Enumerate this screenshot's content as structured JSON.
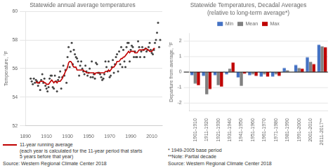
{
  "chart_data": [
    {
      "type": "scatter",
      "title": "Statewide annual average temperatures",
      "ylabel": "Temperature, °F",
      "xlim": [
        1890,
        2020
      ],
      "xticks": [
        1890,
        1910,
        1930,
        1950,
        1970,
        1990,
        2010
      ],
      "ylim": [
        52,
        60
      ],
      "yticks": [
        52,
        54,
        56,
        58,
        60
      ],
      "grid": "y",
      "legend": "bottom",
      "annotations": [
        "Source: Western Regional Climate Center 2018"
      ],
      "series": [
        {
          "type": "scatter",
          "color": "#444444",
          "x": [
            1895,
            1896,
            1897,
            1898,
            1899,
            1900,
            1901,
            1902,
            1903,
            1904,
            1905,
            1906,
            1907,
            1908,
            1909,
            1910,
            1911,
            1912,
            1913,
            1914,
            1915,
            1916,
            1917,
            1918,
            1919,
            1920,
            1921,
            1922,
            1923,
            1924,
            1925,
            1926,
            1927,
            1928,
            1929,
            1930,
            1931,
            1932,
            1933,
            1934,
            1935,
            1936,
            1937,
            1938,
            1939,
            1940,
            1941,
            1942,
            1943,
            1944,
            1945,
            1946,
            1947,
            1948,
            1949,
            1950,
            1951,
            1952,
            1953,
            1954,
            1955,
            1956,
            1957,
            1958,
            1959,
            1960,
            1961,
            1962,
            1963,
            1964,
            1965,
            1966,
            1967,
            1968,
            1969,
            1970,
            1971,
            1972,
            1973,
            1974,
            1975,
            1976,
            1977,
            1978,
            1979,
            1980,
            1981,
            1982,
            1983,
            1984,
            1985,
            1986,
            1987,
            1988,
            1989,
            1990,
            1991,
            1992,
            1993,
            1994,
            1995,
            1996,
            1997,
            1998,
            1999,
            2000,
            2001,
            2002,
            2003,
            2004,
            2005,
            2006,
            2007,
            2008,
            2009,
            2010,
            2011,
            2012,
            2013,
            2014,
            2015,
            2016,
            2017,
            2018
          ],
          "values": [
            55.3,
            55.1,
            54.9,
            55.3,
            55.0,
            55.2,
            55.1,
            54.8,
            55.0,
            54.5,
            55.2,
            55.6,
            55.0,
            55.3,
            54.8,
            54.6,
            54.4,
            54.7,
            55.3,
            55.5,
            55.5,
            54.7,
            54.6,
            55.5,
            55.1,
            54.4,
            55.2,
            55.4,
            55.8,
            54.6,
            55.4,
            56.2,
            55.5,
            55.9,
            55.0,
            56.8,
            57.5,
            56.1,
            57.2,
            57.8,
            56.3,
            57.3,
            57.0,
            56.8,
            56.7,
            56.5,
            55.5,
            56.2,
            56.5,
            56.0,
            55.8,
            55.6,
            56.2,
            55.8,
            55.5,
            55.7,
            56.0,
            55.4,
            56.5,
            55.4,
            55.6,
            55.3,
            56.4,
            56.3,
            55.7,
            55.7,
            55.6,
            55.4,
            55.2,
            55.3,
            55.6,
            56.5,
            56.1,
            55.8,
            56.5,
            55.4,
            55.5,
            56.1,
            56.6,
            55.7,
            56.3,
            56.8,
            57.0,
            55.8,
            57.2,
            56.3,
            57.5,
            56.1,
            57.3,
            56.5,
            56.1,
            57.5,
            57.8,
            57.8,
            56.5,
            57.3,
            57.6,
            57.5,
            56.8,
            57.2,
            56.8,
            56.8,
            57.9,
            57.5,
            56.8,
            57.2,
            57.5,
            57.3,
            56.8,
            57.4,
            57.2,
            57.3,
            57.5,
            57.8,
            57.3,
            57.1,
            57.0,
            57.3,
            57.8,
            58.0,
            58.5,
            59.2,
            57.5,
            58.0
          ]
        },
        {
          "name": "11-year running average\n(each year is calculated for the 11-year period that starts\n5 years before that year)",
          "type": "line",
          "color": "#c00000",
          "x": [
            1900,
            1901,
            1902,
            1903,
            1904,
            1905,
            1906,
            1907,
            1908,
            1909,
            1910,
            1911,
            1912,
            1913,
            1914,
            1915,
            1916,
            1917,
            1918,
            1919,
            1920,
            1921,
            1922,
            1923,
            1924,
            1925,
            1926,
            1927,
            1928,
            1929,
            1930,
            1931,
            1932,
            1933,
            1934,
            1935,
            1936,
            1937,
            1938,
            1939,
            1940,
            1941,
            1942,
            1943,
            1944,
            1945,
            1946,
            1947,
            1948,
            1949,
            1950,
            1951,
            1952,
            1953,
            1954,
            1955,
            1956,
            1957,
            1958,
            1959,
            1960,
            1961,
            1962,
            1963,
            1964,
            1965,
            1966,
            1967,
            1968,
            1969,
            1970,
            1971,
            1972,
            1973,
            1974,
            1975,
            1976,
            1977,
            1978,
            1979,
            1980,
            1981,
            1982,
            1983,
            1984,
            1985,
            1986,
            1987,
            1988,
            1989,
            1990,
            1991,
            1992,
            1993,
            1994,
            1995,
            1996,
            1997,
            1998,
            1999,
            2000,
            2001,
            2002,
            2003,
            2004,
            2005,
            2006,
            2007,
            2008,
            2009,
            2010,
            2011,
            2012,
            2013
          ],
          "values": [
            55.1,
            55.0,
            55.0,
            55.0,
            55.1,
            55.1,
            55.1,
            55.1,
            55.0,
            55.0,
            54.9,
            54.9,
            54.9,
            55.0,
            55.1,
            55.2,
            55.1,
            55.0,
            55.1,
            55.1,
            55.0,
            55.1,
            55.1,
            55.1,
            55.2,
            55.3,
            55.5,
            55.6,
            55.8,
            55.9,
            56.1,
            56.4,
            56.5,
            56.5,
            56.4,
            56.2,
            56.1,
            56.1,
            56.1,
            55.9,
            55.9,
            55.9,
            55.9,
            55.9,
            55.9,
            55.9,
            55.8,
            55.8,
            55.7,
            55.7,
            55.7,
            55.7,
            55.7,
            55.7,
            55.7,
            55.7,
            55.6,
            55.7,
            55.7,
            55.7,
            55.7,
            55.7,
            55.7,
            55.7,
            55.7,
            55.7,
            55.8,
            55.8,
            55.8,
            55.9,
            55.8,
            55.9,
            56.0,
            56.1,
            56.1,
            56.2,
            56.3,
            56.5,
            56.5,
            56.5,
            56.6,
            56.7,
            56.7,
            56.8,
            56.8,
            56.9,
            57.0,
            57.1,
            57.2,
            57.1,
            57.2,
            57.2,
            57.2,
            57.2,
            57.1,
            57.1,
            57.1,
            57.2,
            57.3,
            57.3,
            57.3,
            57.3,
            57.3,
            57.3,
            57.4,
            57.4,
            57.3,
            57.3,
            57.2,
            57.2,
            57.2,
            57.3,
            57.4,
            57.4
          ]
        }
      ]
    },
    {
      "type": "bar",
      "title": "Statewide Temperatures, Decadal Averages\n(relative to long-term average*)",
      "ylabel": "Departure from average, °F",
      "ylim": [
        -2.5,
        2.5
      ],
      "yticks": [
        -2,
        -1,
        0,
        1,
        2
      ],
      "grid": "y",
      "legend": "top",
      "annotations": [
        "*  1949-2005 base period",
        "**Note: Partial decade",
        "Source: Western Regional Climate Center 2018"
      ],
      "categories": [
        "1901-1910",
        "1911-1920",
        "1921-1930",
        "1931-1940",
        "1941-1950",
        "1951-1960",
        "1961-1970",
        "1971-1980",
        "1981-1990",
        "1991-2000",
        "2001-2010",
        "2011-2017**"
      ],
      "series": [
        {
          "name": "Min",
          "color": "#4472c4",
          "values": [
            -0.2,
            -0.25,
            -0.2,
            -0.15,
            -0.35,
            -0.2,
            -0.3,
            -0.3,
            0.25,
            0.45,
            0.95,
            1.75
          ]
        },
        {
          "name": "Mean",
          "color": "#808080",
          "values": [
            -0.75,
            -1.45,
            -0.85,
            0.2,
            -0.9,
            -0.15,
            -0.15,
            -0.15,
            0.1,
            0.25,
            0.65,
            1.65
          ]
        },
        {
          "name": "Max",
          "color": "#c00000",
          "values": [
            -0.85,
            -1.1,
            -0.95,
            0.6,
            -0.1,
            -0.25,
            -0.3,
            -0.25,
            0.0,
            0.2,
            0.5,
            1.6
          ]
        }
      ]
    }
  ]
}
